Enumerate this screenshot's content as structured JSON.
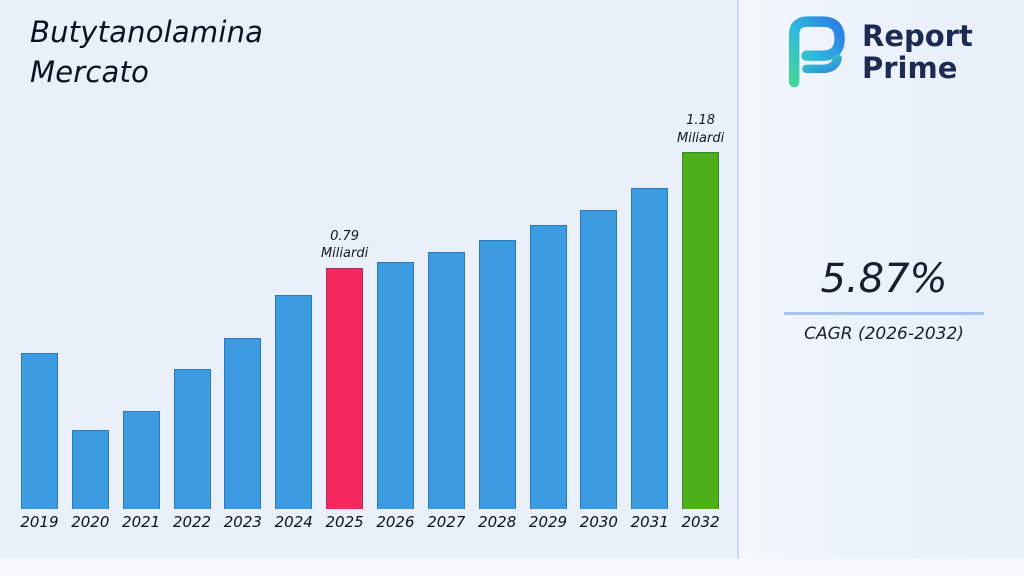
{
  "header": {
    "title_line1": "Butytanolamina",
    "title_line2": "Mercato"
  },
  "logo": {
    "line1": "Report",
    "line2": "Prime"
  },
  "stats": {
    "cagr_value": "5.87%",
    "cagr_label": "CAGR (2026-2032)"
  },
  "colors": {
    "bar_blue": "#3d9be2",
    "bar_pink": "#f42a5f",
    "bar_green": "#4db01a",
    "underline_accent": "#a6c7ec",
    "logo_navy": "#1d2b52"
  },
  "chart_data": {
    "type": "bar",
    "title": "Butytanolamina Mercato",
    "xlabel": "",
    "ylabel": "Miliardi",
    "ylim": [
      0,
      1.3
    ],
    "grid": false,
    "legend": "none",
    "bar_color": "#3d9be2",
    "categories": [
      "2019",
      "2020",
      "2021",
      "2022",
      "2023",
      "2024",
      "2025",
      "2026",
      "2027",
      "2028",
      "2029",
      "2030",
      "2031",
      "2032"
    ],
    "values": [
      0.51,
      0.26,
      0.32,
      0.46,
      0.56,
      0.7,
      0.79,
      0.81,
      0.84,
      0.88,
      0.93,
      0.98,
      1.05,
      1.18
    ],
    "highlights": [
      {
        "category": "2025",
        "color": "#f42a5f",
        "label_lines": [
          "0.79",
          "Miliardi"
        ]
      },
      {
        "category": "2032",
        "color": "#4db01a",
        "label_lines": [
          "1.18",
          "Miliardi"
        ]
      }
    ]
  }
}
